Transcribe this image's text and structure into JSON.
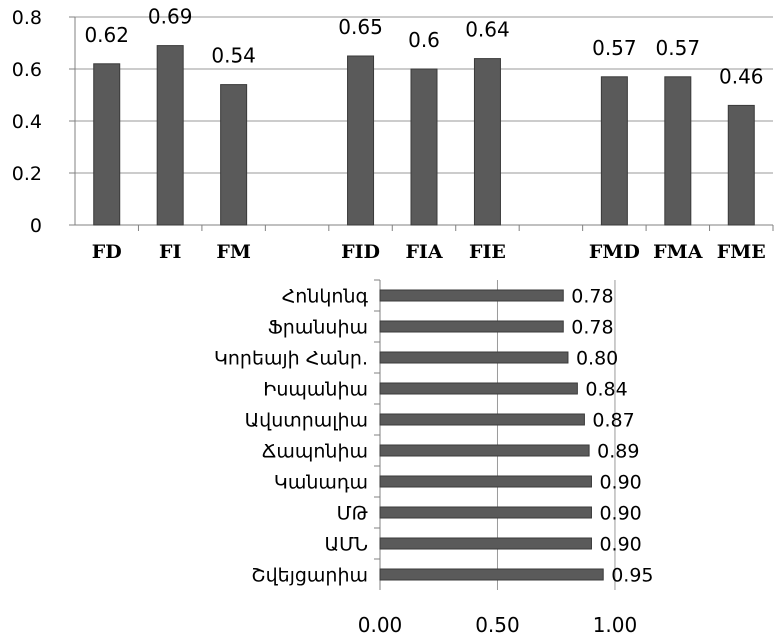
{
  "colors": {
    "bar_fill": "#5a5a5a",
    "bar_stroke": "#3a3a3a",
    "axis": "#808080",
    "grid": "#9a9a9a",
    "text": "#000000"
  },
  "chart_data": [
    {
      "type": "bar",
      "orientation": "vertical",
      "title": "",
      "xlabel": "",
      "ylabel": "",
      "categories": [
        "FD",
        "FI",
        "FM",
        "",
        "FID",
        "FIA",
        "FIE",
        "",
        "FMD",
        "FMA",
        "FME"
      ],
      "series": [
        {
          "values": [
            0.62,
            0.69,
            0.54,
            null,
            0.65,
            0.6,
            0.64,
            null,
            0.57,
            0.57,
            0.46
          ],
          "data_labels": [
            "0.62",
            "0.69",
            "0.54",
            "",
            "0.65",
            "0.6",
            "0.64",
            "",
            "0.57",
            "0.57",
            "0.46"
          ]
        }
      ],
      "ylim": [
        0,
        0.8
      ],
      "yticks": [
        0,
        0.2,
        0.4,
        0.6,
        0.8
      ],
      "ytick_labels": [
        "0",
        "0.2",
        "0.4",
        "0.6",
        "0.8"
      ],
      "grid": true,
      "legend": "none"
    },
    {
      "type": "bar",
      "orientation": "horizontal",
      "title": "",
      "xlabel": "",
      "ylabel": "",
      "categories": [
        "Հոնկոնգ",
        "Ֆրանսիա",
        "Կորեայի Հանր.",
        "Իսպանիա",
        "Ավստրալիա",
        "Ճապոնիա",
        "Կանադա",
        "ՄԹ",
        "ԱՄՆ",
        "Շվեյցարիա"
      ],
      "series": [
        {
          "values": [
            0.78,
            0.78,
            0.8,
            0.84,
            0.87,
            0.89,
            0.9,
            0.9,
            0.9,
            0.95
          ],
          "data_labels": [
            "0.78",
            "0.78",
            "0.80",
            "0.84",
            "0.87",
            "0.89",
            "0.90",
            "0.90",
            "0.90",
            "0.95"
          ]
        }
      ],
      "xlim": [
        0,
        1
      ],
      "xticks": [
        0,
        0.5,
        1
      ],
      "xtick_labels": [
        "0.00",
        "0.50",
        "1.00"
      ],
      "grid": true,
      "legend": "none"
    }
  ]
}
